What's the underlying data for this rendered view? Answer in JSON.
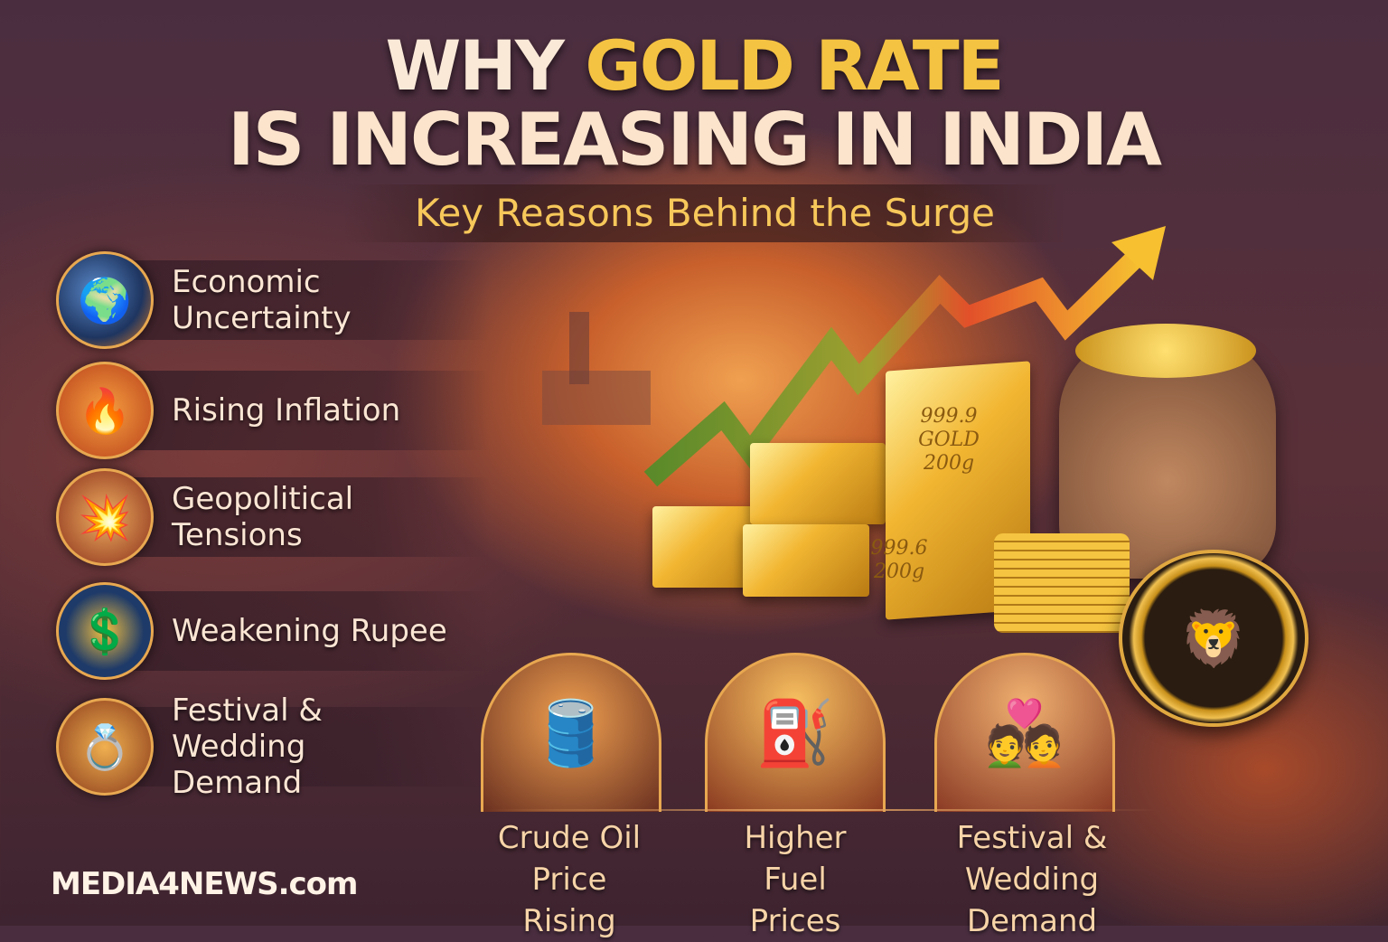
{
  "header": {
    "title_line1_prefix": "WHY ",
    "title_line1_highlight": "GOLD RATE",
    "title_line2": "IS INCREASING IN INDIA",
    "subtitle": "Key Reasons Behind the Surge"
  },
  "reasons": [
    {
      "label": "Economic Uncertainty",
      "icon": "globe-icon"
    },
    {
      "label": "Rising Inflation",
      "icon": "fire-icon"
    },
    {
      "label": "Geopolitical Tensions",
      "icon": "explosion-icon"
    },
    {
      "label": "Weakening Rupee",
      "icon": "dollar-icon"
    },
    {
      "label": "Festival & Wedding Demand",
      "icon": "jewelry-icon"
    }
  ],
  "bottom": [
    {
      "label": "Crude Oil Price Rising",
      "icon": "oil-barrel-icon"
    },
    {
      "label": "Higher Fuel Prices",
      "icon": "fuel-chart-icon"
    },
    {
      "label": "Festival & Wedding Demand",
      "icon": "wedding-couple-icon"
    }
  ],
  "gold_bar": {
    "big_line1": "999.9",
    "big_line2": "GOLD",
    "big_line3": "200g",
    "small_line1": "999.6",
    "small_line2": "200g"
  },
  "brand": "MEDIA4NEWS.com",
  "colors": {
    "gold": "#f5c342",
    "text": "#fbe6d4",
    "accent_border": "#e8a850"
  }
}
